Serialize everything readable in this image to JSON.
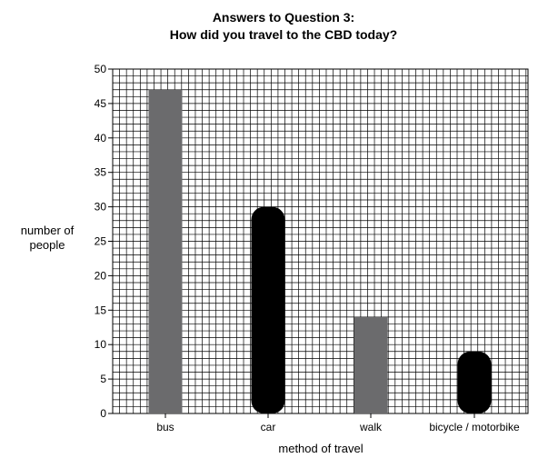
{
  "chart_data": {
    "type": "bar",
    "title": "Answers to Question 3:",
    "subtitle": "How did you travel to the CBD today?",
    "xlabel": "method of travel",
    "ylabel_lines": [
      "number of",
      "people"
    ],
    "categories": [
      "bus",
      "car",
      "walk",
      "bicycle / motorbike"
    ],
    "values": [
      47,
      30,
      14,
      9
    ],
    "ylim": [
      0,
      50
    ],
    "yticks": [
      0,
      5,
      10,
      15,
      20,
      25,
      30,
      35,
      40,
      45,
      50
    ],
    "minor_grid_step": 1,
    "grid": true,
    "legend": false,
    "bar_colors": [
      "#6b6b6d",
      "#000000",
      "#6b6b6d",
      "#000000"
    ],
    "obscured_bars": [
      false,
      true,
      false,
      true
    ]
  }
}
